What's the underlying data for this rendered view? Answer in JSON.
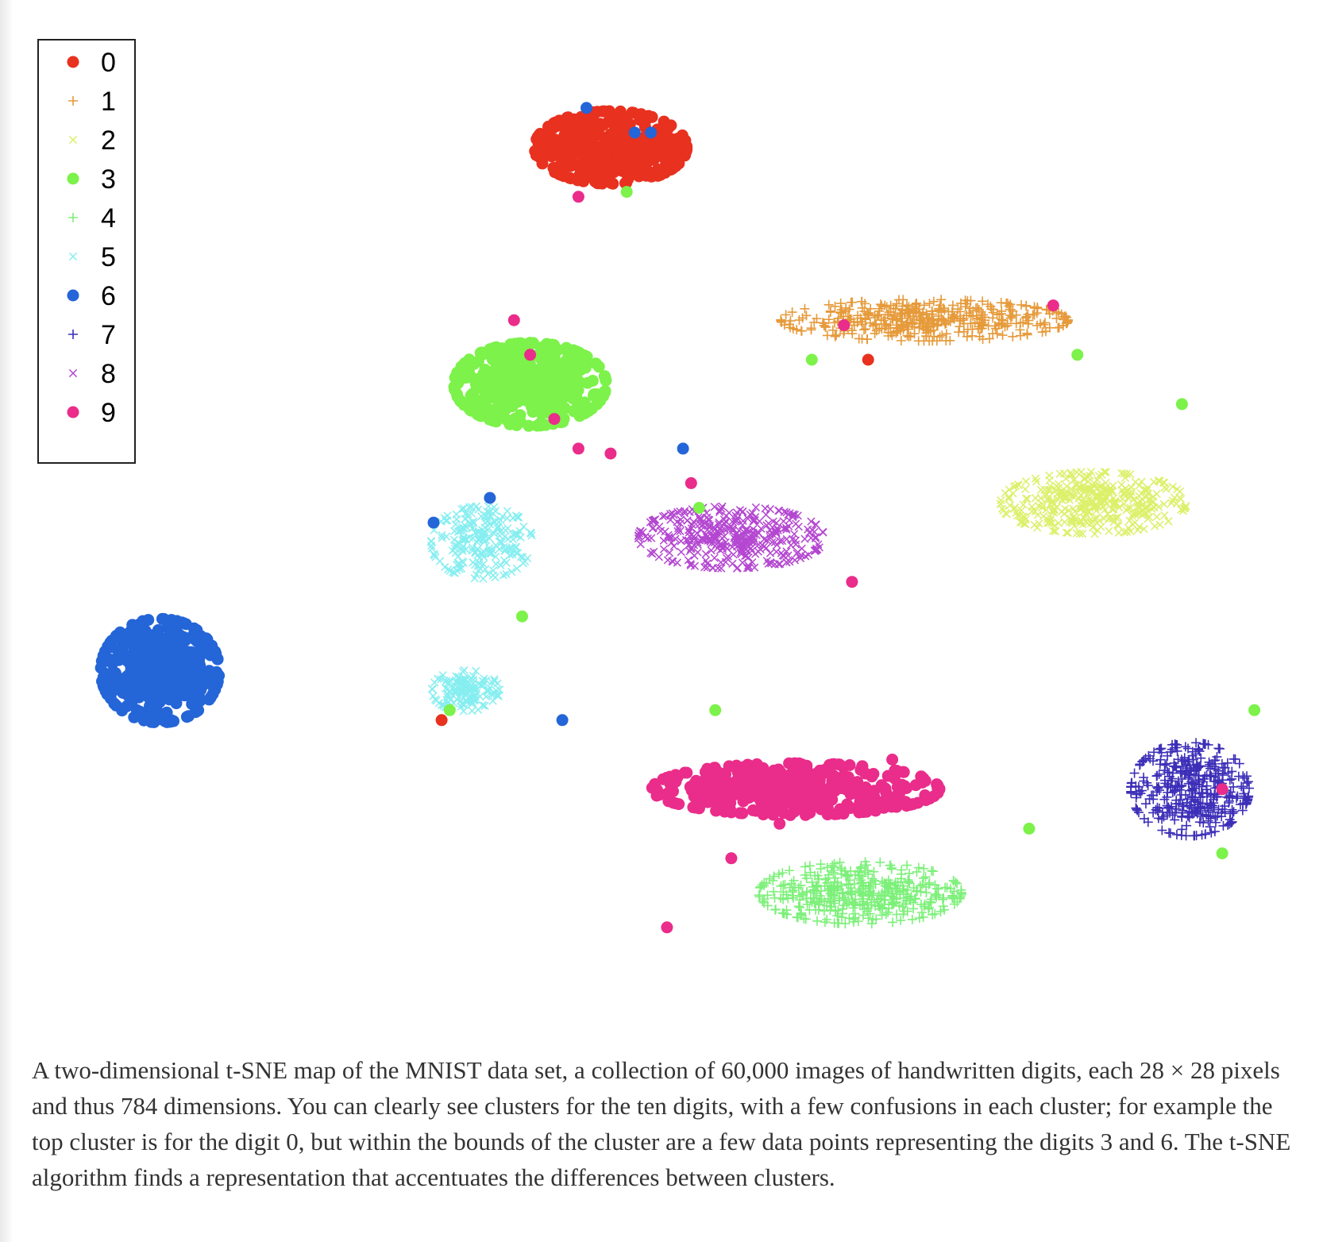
{
  "chart_data": {
    "type": "scatter",
    "title": "",
    "xlabel": "",
    "ylabel": "",
    "axes_visible": false,
    "grid": false,
    "legend_position": "top-left",
    "series": [
      {
        "name": "0",
        "marker": "dot",
        "color": "#e8311f",
        "clusters": [
          {
            "center": [
              -18,
              88
            ],
            "spread": [
              9,
              7
            ],
            "count": 380
          }
        ]
      },
      {
        "name": "1",
        "marker": "plus",
        "color": "#e69a3a",
        "clusters": [
          {
            "center": [
              21,
              53
            ],
            "spread": [
              17,
              4
            ],
            "count": 420
          }
        ]
      },
      {
        "name": "2",
        "marker": "x",
        "color": "#dcf06a",
        "clusters": [
          {
            "center": [
              42,
              16
            ],
            "spread": [
              11,
              6
            ],
            "count": 380
          }
        ]
      },
      {
        "name": "3",
        "marker": "dot",
        "color": "#7cf24a",
        "clusters": [
          {
            "center": [
              -28,
              40
            ],
            "spread": [
              9,
              8
            ],
            "count": 420
          }
        ]
      },
      {
        "name": "4",
        "marker": "plus",
        "color": "#7df07a",
        "clusters": [
          {
            "center": [
              13,
              -63
            ],
            "spread": [
              12,
              6
            ],
            "count": 420
          }
        ]
      },
      {
        "name": "5",
        "marker": "x",
        "color": "#86eef0",
        "clusters": [
          {
            "center": [
              -34,
              8
            ],
            "spread": [
              6,
              7
            ],
            "count": 220
          },
          {
            "center": [
              -36,
              -22
            ],
            "spread": [
              4,
              4
            ],
            "count": 150
          }
        ]
      },
      {
        "name": "6",
        "marker": "dot",
        "color": "#2465d8",
        "clusters": [
          {
            "center": [
              -74,
              -18
            ],
            "spread": [
              7,
              10
            ],
            "count": 400
          }
        ]
      },
      {
        "name": "7",
        "marker": "plus",
        "color": "#3d2fb8",
        "clusters": [
          {
            "center": [
              54,
              -42
            ],
            "spread": [
              7,
              9
            ],
            "count": 380
          }
        ]
      },
      {
        "name": "8",
        "marker": "x",
        "color": "#b447d1",
        "clusters": [
          {
            "center": [
              -3,
              9
            ],
            "spread": [
              11,
              6
            ],
            "count": 380
          }
        ]
      },
      {
        "name": "9",
        "marker": "dot",
        "color": "#ea2c8a",
        "clusters": [
          {
            "center": [
              5,
              -42
            ],
            "spread": [
              17,
              5
            ],
            "count": 380
          }
        ]
      }
    ]
  },
  "caption": "A two-dimensional t-SNE map of the MNIST data set, a collection of 60,000 images of handwritten digits, each 28 × 28 pixels and thus 784 dimensions. You can clearly see clusters for the ten digits, with a few confusions in each cluster; for example the top cluster is for the digit 0, but within the bounds of the cluster are a few data points representing the digits 3 and 6. The t-SNE algorithm finds a representation that accentuates the differences between clusters."
}
